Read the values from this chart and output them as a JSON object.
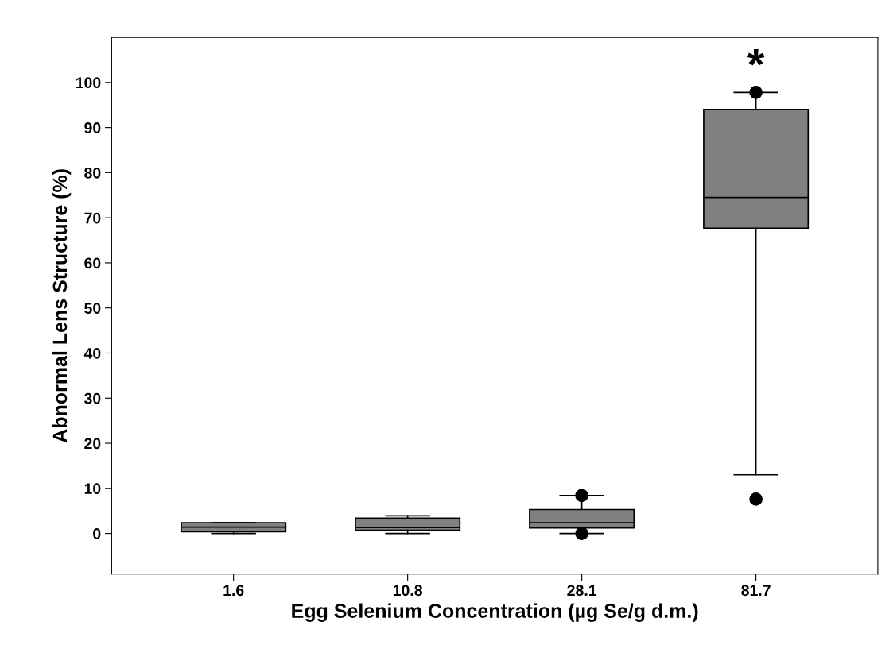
{
  "chart_data": {
    "type": "box",
    "xlabel": "Egg Selenium Concentration (µg Se/g d.m.)",
    "ylabel": "Abnormal Lens Structure (%)",
    "categories": [
      "1.6",
      "10.8",
      "28.1",
      "81.7"
    ],
    "color": "#808080",
    "boxes": [
      {
        "low": 0,
        "q1": 0.4,
        "median": 1.4,
        "q3": 2.4,
        "high": 2.4
      },
      {
        "low": 0,
        "q1": 0.7,
        "median": 1.3,
        "q3": 3.4,
        "high": 3.9
      },
      {
        "low": 0,
        "q1": 1.2,
        "median": 2.4,
        "q3": 5.3,
        "high": 8.4,
        "outliers": [
          8.4,
          0
        ]
      },
      {
        "low": 13,
        "q1": 67.7,
        "median": 74.5,
        "q3": 94,
        "high": 97.8,
        "outliers": [
          97.8,
          7.6
        ]
      }
    ],
    "ylim": [
      -9,
      110
    ],
    "yticks": [
      0,
      10,
      20,
      30,
      40,
      50,
      60,
      70,
      80,
      90,
      100
    ],
    "annotations": [
      "*"
    ],
    "grid": false
  }
}
